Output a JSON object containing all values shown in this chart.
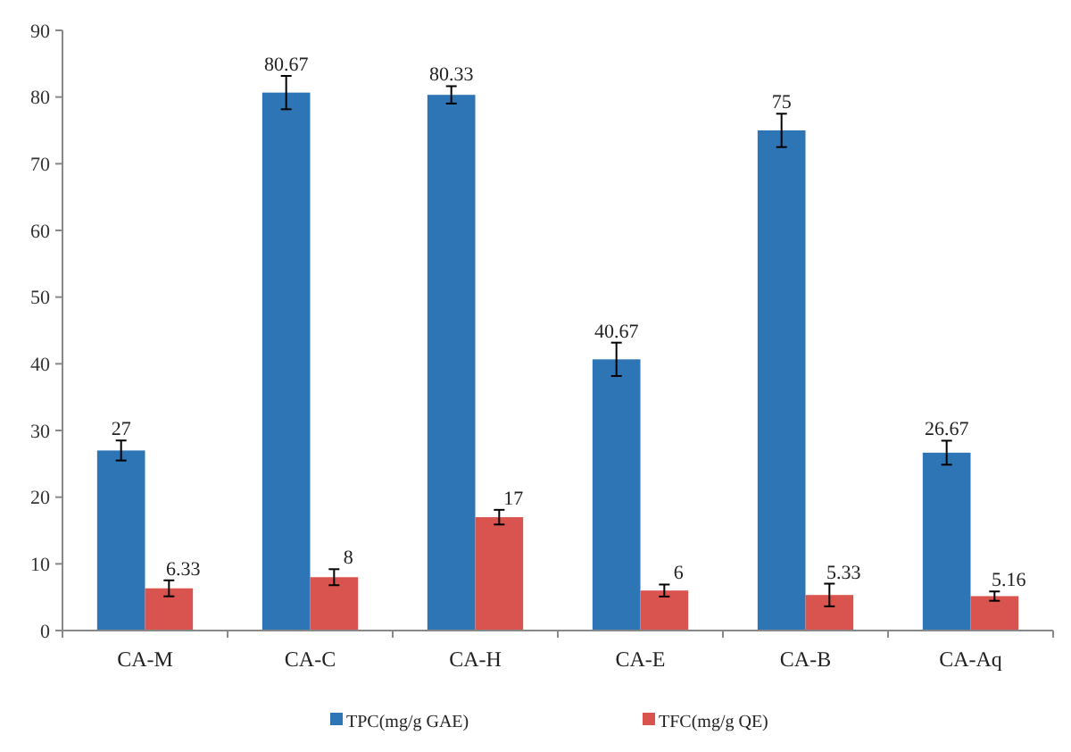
{
  "chart_data": {
    "type": "bar",
    "categories": [
      "CA-M",
      "CA-C",
      "CA-H",
      "CA-E",
      "CA-B",
      "CA-Aq"
    ],
    "series": [
      {
        "name": "TPC(mg/g GAE)",
        "color": "#2e75b6",
        "values": [
          27,
          80.67,
          80.33,
          40.67,
          75,
          26.67
        ],
        "errors": [
          1.5,
          2.5,
          1.3,
          2.5,
          2.5,
          1.8
        ]
      },
      {
        "name": "TFC(mg/g QE)",
        "color": "#d9534f",
        "values": [
          6.33,
          8,
          17,
          6,
          5.33,
          5.16
        ],
        "errors": [
          1.2,
          1.2,
          1.1,
          0.9,
          1.7,
          0.7
        ]
      }
    ],
    "ylim": [
      0,
      90
    ],
    "yticks": [
      0,
      10,
      20,
      30,
      40,
      50,
      60,
      70,
      80,
      90
    ],
    "data_labels": true,
    "legend": "bottom",
    "grid": false
  }
}
